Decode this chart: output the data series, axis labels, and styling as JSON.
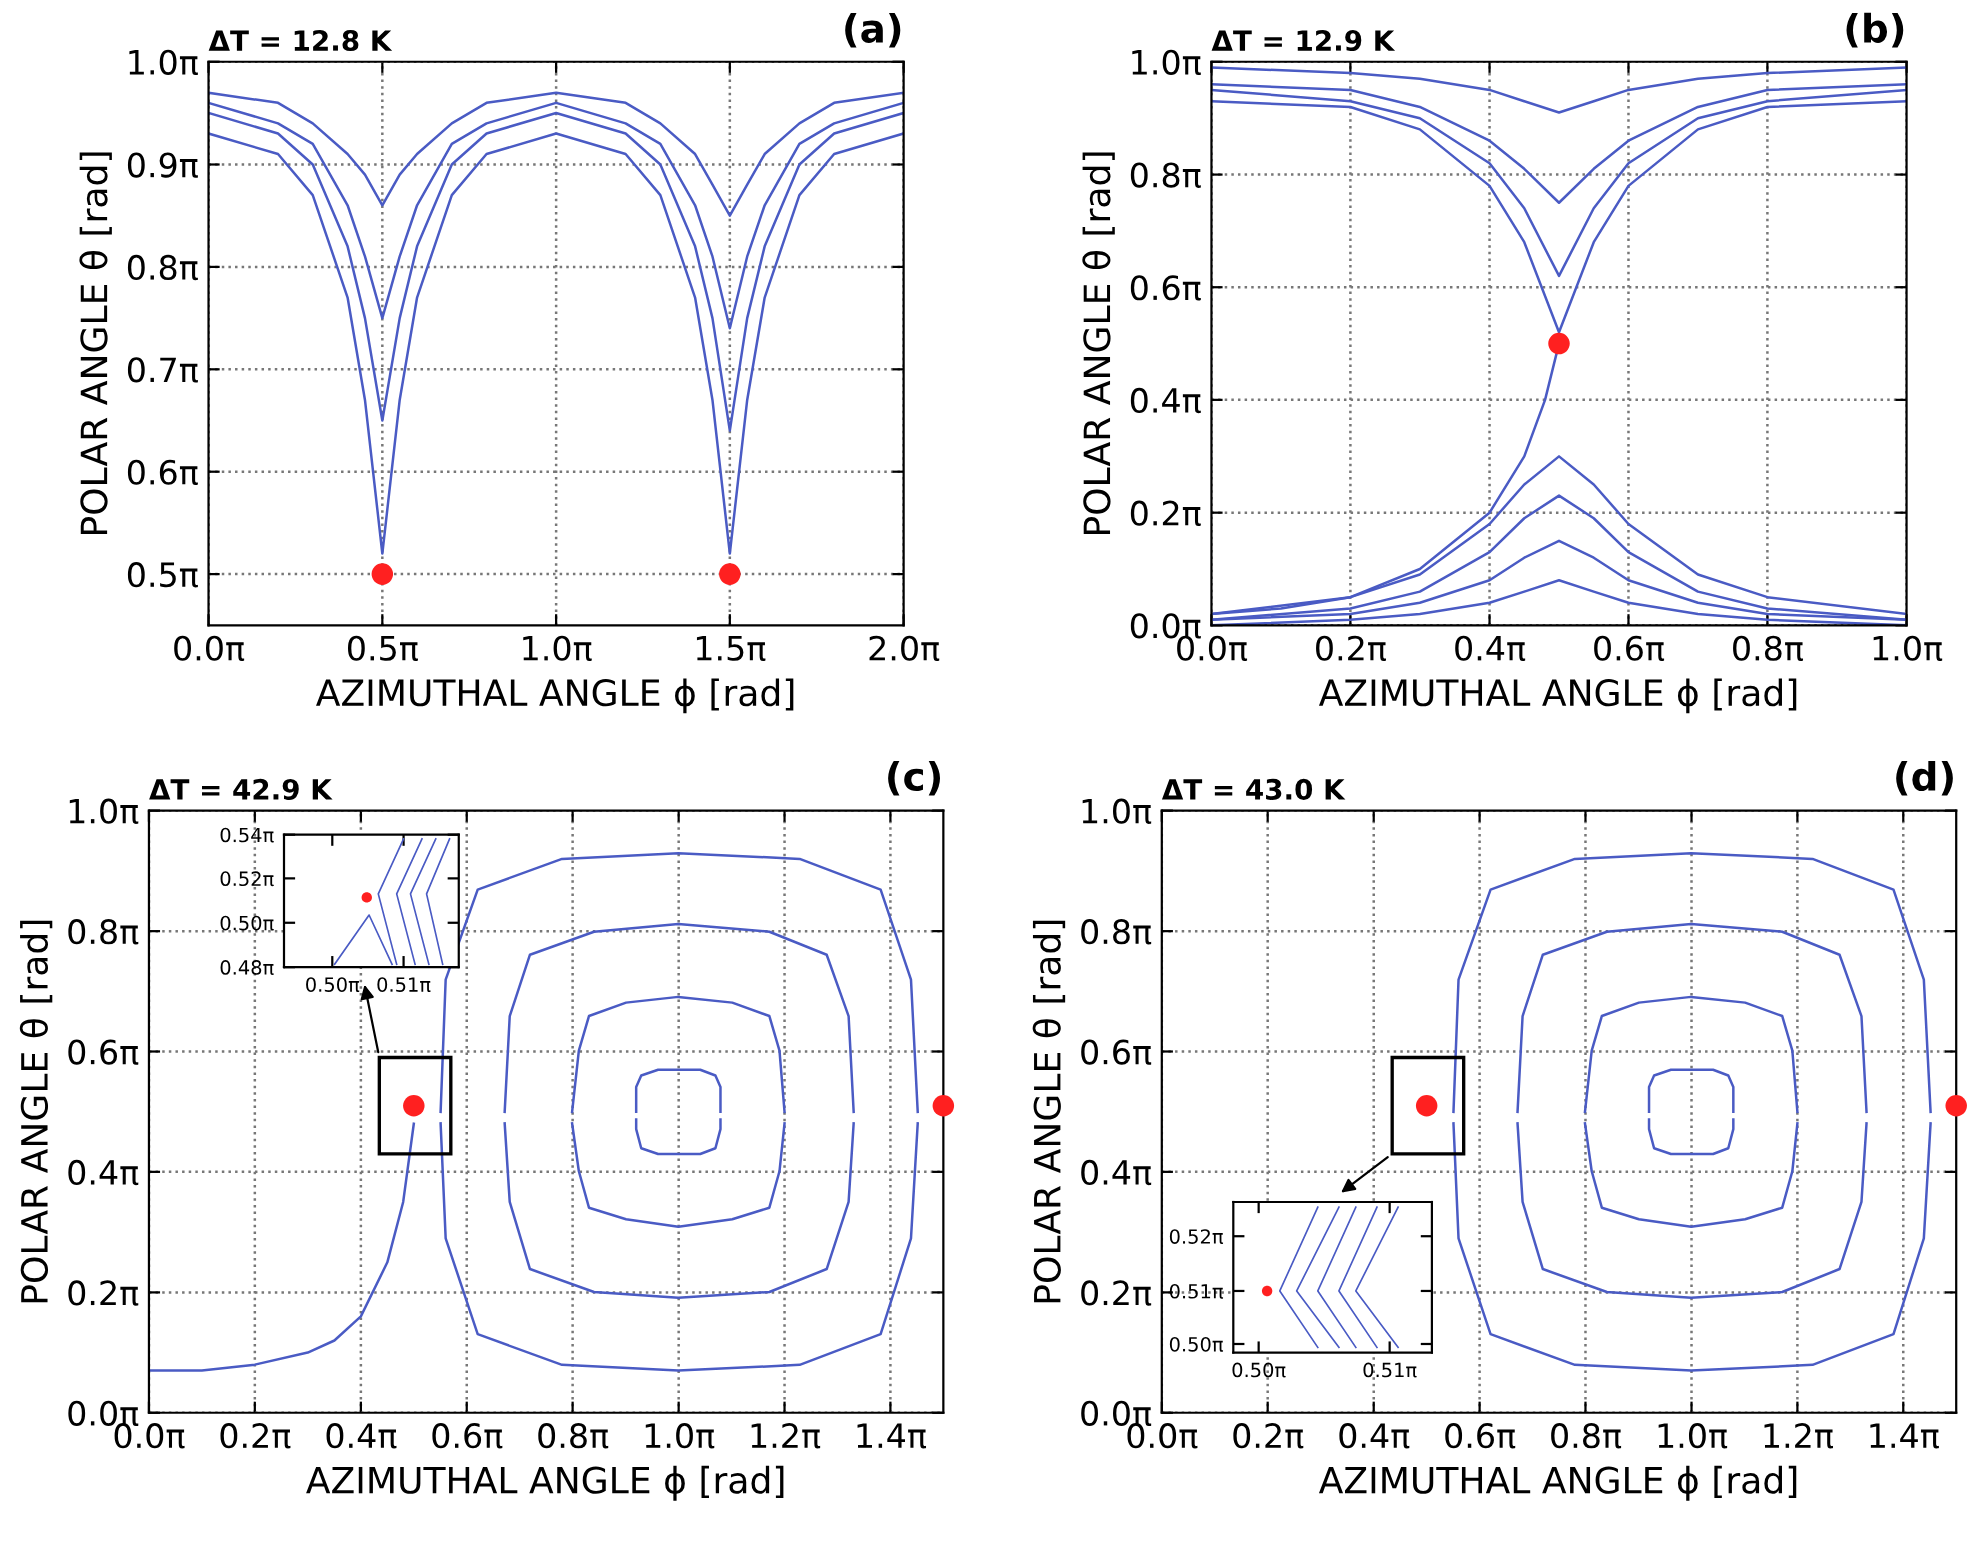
{
  "chart_data": [
    {
      "type": "line",
      "title": "ΔT = 12.8 K",
      "annotations": [
        "(a)"
      ],
      "xlabel": "AZIMUTHAL ANGLE ϕ [rad]",
      "ylabel": "POLAR ANGLE θ [rad]",
      "grid": true,
      "xlim": [
        0,
        6.283
      ],
      "ylim": [
        1.414,
        3.142
      ],
      "xticks": [
        {
          "value": 0,
          "label": "0.0π"
        },
        {
          "value": 1.571,
          "label": "0.5π"
        },
        {
          "value": 3.142,
          "label": "1.0π"
        },
        {
          "value": 4.712,
          "label": "1.5π"
        },
        {
          "value": 6.283,
          "label": "2.0π"
        }
      ],
      "yticks": [
        {
          "value": 1.571,
          "label": "0.5π"
        },
        {
          "value": 1.885,
          "label": "0.6π"
        },
        {
          "value": 2.199,
          "label": "0.7π"
        },
        {
          "value": 2.513,
          "label": "0.8π"
        },
        {
          "value": 2.827,
          "label": "0.9π"
        },
        {
          "value": 3.142,
          "label": "1.0π"
        }
      ],
      "x": [
        0,
        0.628,
        0.942,
        1.257,
        1.414,
        1.571,
        1.728,
        1.885,
        2.199,
        2.513,
        3.142,
        3.77,
        4.084,
        4.398,
        4.555,
        4.712,
        4.869,
        5.027,
        5.341,
        5.655,
        6.283
      ],
      "series": [
        {
          "color": "#4a5bc4",
          "values": [
            2.922,
            2.859,
            2.733,
            2.419,
            2.105,
            1.634,
            2.105,
            2.419,
            2.733,
            2.859,
            2.922,
            2.859,
            2.733,
            2.419,
            2.105,
            1.634,
            2.105,
            2.419,
            2.733,
            2.859,
            2.922
          ]
        },
        {
          "color": "#4a5bc4",
          "values": [
            2.985,
            2.922,
            2.827,
            2.576,
            2.356,
            2.042,
            2.356,
            2.576,
            2.827,
            2.922,
            2.985,
            2.922,
            2.827,
            2.576,
            2.356,
            2.011,
            2.356,
            2.576,
            2.827,
            2.922,
            2.985
          ]
        },
        {
          "color": "#4a5bc4",
          "values": [
            3.016,
            2.953,
            2.89,
            2.702,
            2.545,
            2.356,
            2.545,
            2.702,
            2.89,
            2.953,
            3.016,
            2.953,
            2.89,
            2.702,
            2.545,
            2.325,
            2.545,
            2.702,
            2.89,
            2.953,
            3.016
          ]
        },
        {
          "color": "#4a5bc4",
          "values": [
            3.047,
            3.016,
            2.953,
            2.859,
            2.796,
            2.702,
            2.796,
            2.859,
            2.953,
            3.016,
            3.047,
            3.016,
            2.953,
            2.859,
            2.765,
            2.67,
            2.765,
            2.859,
            2.953,
            3.016,
            3.047
          ]
        },
        {
          "type": "scatter",
          "marker": "circle",
          "color": "#ff2020",
          "x": [
            1.571,
            4.712
          ],
          "values": [
            1.571,
            1.571
          ]
        }
      ]
    },
    {
      "type": "line",
      "title": "ΔT = 12.9 K",
      "annotations": [
        "(b)"
      ],
      "xlabel": "AZIMUTHAL ANGLE ϕ [rad]",
      "ylabel": "POLAR ANGLE θ [rad]",
      "grid": true,
      "xlim": [
        0,
        3.142
      ],
      "ylim": [
        0,
        3.142
      ],
      "xticks": [
        {
          "value": 0,
          "label": "0.0π"
        },
        {
          "value": 0.628,
          "label": "0.2π"
        },
        {
          "value": 1.257,
          "label": "0.4π"
        },
        {
          "value": 1.885,
          "label": "0.6π"
        },
        {
          "value": 2.513,
          "label": "0.8π"
        },
        {
          "value": 3.142,
          "label": "1.0π"
        }
      ],
      "yticks": [
        {
          "value": 0,
          "label": "0.0π"
        },
        {
          "value": 0.628,
          "label": "0.2π"
        },
        {
          "value": 1.257,
          "label": "0.4π"
        },
        {
          "value": 1.885,
          "label": "0.6π"
        },
        {
          "value": 2.513,
          "label": "0.8π"
        },
        {
          "value": 3.142,
          "label": "1.0π"
        }
      ],
      "x": [
        0,
        0.628,
        0.942,
        1.257,
        1.414,
        1.571,
        1.728,
        1.885,
        2.199,
        2.513,
        3.142
      ],
      "series": [
        {
          "color": "#4a5bc4",
          "values": [
            2.922,
            2.89,
            2.765,
            2.45,
            2.136,
            1.634,
            2.136,
            2.45,
            2.765,
            2.89,
            2.922
          ]
        },
        {
          "color": "#4a5bc4",
          "values": [
            2.985,
            2.922,
            2.827,
            2.576,
            2.325,
            1.948,
            2.325,
            2.576,
            2.827,
            2.922,
            2.985
          ]
        },
        {
          "color": "#4a5bc4",
          "values": [
            3.016,
            2.985,
            2.89,
            2.702,
            2.545,
            2.356,
            2.545,
            2.702,
            2.89,
            2.985,
            3.016
          ]
        },
        {
          "color": "#4a5bc4",
          "values": [
            3.11,
            3.079,
            3.047,
            2.985,
            2.922,
            2.859,
            2.922,
            2.985,
            3.047,
            3.079,
            3.11
          ]
        },
        {
          "color": "#4a5bc4",
          "values": [
            0.063,
            0.157,
            0.283,
            0.565,
            0.785,
            0.942,
            0.785,
            0.565,
            0.283,
            0.157,
            0.063
          ]
        },
        {
          "color": "#4a5bc4",
          "values": [
            0.031,
            0.094,
            0.188,
            0.408,
            0.597,
            0.723,
            0.597,
            0.408,
            0.188,
            0.094,
            0.031
          ]
        },
        {
          "color": "#4a5bc4",
          "values": [
            0.031,
            0.063,
            0.126,
            0.251,
            0.377,
            0.471,
            0.377,
            0.251,
            0.126,
            0.063,
            0.031
          ]
        },
        {
          "color": "#4a5bc4",
          "values": [
            0,
            0.031,
            0.063,
            0.126,
            0.188,
            0.251,
            0.188,
            0.126,
            0.063,
            0.031,
            0
          ]
        },
        {
          "color": "#4a5bc4",
          "x": [
            0,
            0.314,
            0.628,
            0.942,
            1.257,
            1.414,
            1.508,
            1.571
          ],
          "values": [
            0.063,
            0.094,
            0.157,
            0.314,
            0.628,
            0.942,
            1.257,
            1.571
          ]
        },
        {
          "type": "scatter",
          "marker": "circle",
          "color": "#ff2020",
          "x": [
            1.571
          ],
          "values": [
            1.571
          ]
        }
      ]
    },
    {
      "type": "line",
      "title": "ΔT = 42.9 K",
      "annotations": [
        "(c)"
      ],
      "xlabel": "AZIMUTHAL ANGLE ϕ [rad]",
      "ylabel": "POLAR ANGLE θ [rad]",
      "grid": true,
      "xlim": [
        0,
        4.712
      ],
      "ylim": [
        0,
        3.142
      ],
      "xticks": [
        {
          "value": 0,
          "label": "0.0π"
        },
        {
          "value": 0.628,
          "label": "0.2π"
        },
        {
          "value": 1.257,
          "label": "0.4π"
        },
        {
          "value": 1.885,
          "label": "0.6π"
        },
        {
          "value": 2.513,
          "label": "0.8π"
        },
        {
          "value": 3.142,
          "label": "1.0π"
        },
        {
          "value": 3.77,
          "label": "1.2π"
        },
        {
          "value": 4.398,
          "label": "1.4π"
        }
      ],
      "yticks": [
        {
          "value": 0,
          "label": "0.0π"
        },
        {
          "value": 0.628,
          "label": "0.2π"
        },
        {
          "value": 1.257,
          "label": "0.4π"
        },
        {
          "value": 1.885,
          "label": "0.6π"
        },
        {
          "value": 2.513,
          "label": "0.8π"
        },
        {
          "value": 3.142,
          "label": "1.0π"
        }
      ],
      "series": [
        {
          "color": "#4a5bc4",
          "x": [
            1.73,
            1.76,
            1.95,
            2.45,
            3.14,
            3.86,
            4.34,
            4.52,
            4.56
          ],
          "values": [
            1.57,
            2.26,
            2.73,
            2.89,
            2.92,
            2.89,
            2.73,
            2.26,
            1.57
          ]
        },
        {
          "color": "#4a5bc4",
          "x": [
            1.73,
            1.76,
            1.95,
            2.45,
            3.14,
            3.86,
            4.34,
            4.52,
            4.56
          ],
          "values": [
            1.51,
            0.91,
            0.41,
            0.25,
            0.22,
            0.25,
            0.41,
            0.91,
            1.51
          ]
        },
        {
          "color": "#4a5bc4",
          "x": [
            2.11,
            2.14,
            2.26,
            2.64,
            3.14,
            3.68,
            4.02,
            4.15,
            4.18
          ],
          "values": [
            1.57,
            2.07,
            2.39,
            2.51,
            2.55,
            2.51,
            2.39,
            2.07,
            1.57
          ]
        },
        {
          "color": "#4a5bc4",
          "x": [
            2.11,
            2.14,
            2.26,
            2.64,
            3.14,
            3.68,
            4.02,
            4.15,
            4.18
          ],
          "values": [
            1.51,
            1.1,
            0.75,
            0.63,
            0.6,
            0.63,
            0.75,
            1.1,
            1.51
          ]
        },
        {
          "color": "#4a5bc4",
          "x": [
            2.51,
            2.55,
            2.61,
            2.83,
            3.14,
            3.46,
            3.68,
            3.74,
            3.77
          ],
          "values": [
            1.57,
            1.89,
            2.07,
            2.14,
            2.17,
            2.14,
            2.07,
            1.89,
            1.57
          ]
        },
        {
          "color": "#4a5bc4",
          "x": [
            2.51,
            2.55,
            2.61,
            2.83,
            3.14,
            3.46,
            3.68,
            3.74,
            3.77
          ],
          "values": [
            1.51,
            1.26,
            1.07,
            1.01,
            0.97,
            1.01,
            1.07,
            1.26,
            1.51
          ]
        },
        {
          "color": "#4a5bc4",
          "x": [
            2.89,
            2.89,
            2.92,
            3.02,
            3.14,
            3.27,
            3.36,
            3.39,
            3.39
          ],
          "values": [
            1.57,
            1.7,
            1.76,
            1.79,
            1.79,
            1.79,
            1.76,
            1.7,
            1.57
          ]
        },
        {
          "color": "#4a5bc4",
          "x": [
            2.89,
            2.89,
            2.92,
            3.02,
            3.14,
            3.27,
            3.36,
            3.39,
            3.39
          ],
          "values": [
            1.53,
            1.48,
            1.38,
            1.35,
            1.35,
            1.35,
            1.38,
            1.48,
            1.53
          ]
        },
        {
          "color": "#4a5bc4",
          "x": [
            0,
            0.314,
            0.628,
            0.942,
            1.1,
            1.257,
            1.414,
            1.508,
            1.571
          ],
          "values": [
            0.22,
            0.22,
            0.251,
            0.314,
            0.377,
            0.503,
            0.785,
            1.1,
            1.508
          ]
        },
        {
          "type": "scatter",
          "marker": "circle",
          "color": "#ff2020",
          "x": [
            1.571,
            4.712
          ],
          "values": [
            1.602,
            1.602
          ]
        }
      ]
    },
    {
      "type": "line",
      "xlim": [
        1.55,
        1.626
      ],
      "ylim": [
        1.508,
        1.696
      ],
      "xticks": [
        {
          "value": 1.571,
          "label": "0.50π"
        },
        {
          "value": 1.602,
          "label": "0.51π"
        }
      ],
      "yticks": [
        {
          "value": 1.508,
          "label": "0.48π"
        },
        {
          "value": 1.571,
          "label": "0.50π"
        },
        {
          "value": 1.634,
          "label": "0.52π"
        },
        {
          "value": 1.696,
          "label": "0.54π"
        }
      ],
      "series": [
        {
          "color": "#4a5bc4",
          "x": [
            1.572,
            1.587,
            1.597
          ],
          "values": [
            1.512,
            1.582,
            1.512
          ]
        },
        {
          "color": "#4a5bc4",
          "x": [
            1.602,
            1.591,
            1.599
          ],
          "values": [
            1.69,
            1.612,
            1.512
          ]
        },
        {
          "color": "#4a5bc4",
          "x": [
            1.61,
            1.599,
            1.607
          ],
          "values": [
            1.69,
            1.612,
            1.512
          ]
        },
        {
          "color": "#4a5bc4",
          "x": [
            1.616,
            1.605,
            1.613
          ],
          "values": [
            1.69,
            1.612,
            1.512
          ]
        },
        {
          "color": "#4a5bc4",
          "x": [
            1.622,
            1.612,
            1.619
          ],
          "values": [
            1.69,
            1.612,
            1.512
          ]
        },
        {
          "type": "scatter",
          "marker": "circle",
          "color": "#ff2020",
          "x": [
            1.586
          ],
          "values": [
            1.607
          ]
        }
      ]
    },
    {
      "type": "line",
      "title": "ΔT = 43.0 K",
      "annotations": [
        "(d)"
      ],
      "xlabel": "AZIMUTHAL ANGLE ϕ [rad]",
      "ylabel": "POLAR ANGLE θ [rad]",
      "grid": true,
      "xlim": [
        0,
        4.712
      ],
      "ylim": [
        0,
        3.142
      ],
      "xticks": [
        {
          "value": 0,
          "label": "0.0π"
        },
        {
          "value": 0.628,
          "label": "0.2π"
        },
        {
          "value": 1.257,
          "label": "0.4π"
        },
        {
          "value": 1.885,
          "label": "0.6π"
        },
        {
          "value": 2.513,
          "label": "0.8π"
        },
        {
          "value": 3.142,
          "label": "1.0π"
        },
        {
          "value": 3.77,
          "label": "1.2π"
        },
        {
          "value": 4.398,
          "label": "1.4π"
        }
      ],
      "yticks": [
        {
          "value": 0,
          "label": "0.0π"
        },
        {
          "value": 0.628,
          "label": "0.2π"
        },
        {
          "value": 1.257,
          "label": "0.4π"
        },
        {
          "value": 1.885,
          "label": "0.6π"
        },
        {
          "value": 2.513,
          "label": "0.8π"
        },
        {
          "value": 3.142,
          "label": "1.0π"
        }
      ],
      "series": [
        {
          "color": "#4a5bc4",
          "x": [
            1.73,
            1.76,
            1.95,
            2.45,
            3.14,
            3.86,
            4.34,
            4.52,
            4.56
          ],
          "values": [
            1.57,
            2.26,
            2.73,
            2.89,
            2.92,
            2.89,
            2.73,
            2.26,
            1.57
          ]
        },
        {
          "color": "#4a5bc4",
          "x": [
            1.73,
            1.76,
            1.95,
            2.45,
            3.14,
            3.86,
            4.34,
            4.52,
            4.56
          ],
          "values": [
            1.51,
            0.91,
            0.41,
            0.25,
            0.22,
            0.25,
            0.41,
            0.91,
            1.51
          ]
        },
        {
          "color": "#4a5bc4",
          "x": [
            2.11,
            2.14,
            2.26,
            2.64,
            3.14,
            3.68,
            4.02,
            4.15,
            4.18
          ],
          "values": [
            1.57,
            2.07,
            2.39,
            2.51,
            2.55,
            2.51,
            2.39,
            2.07,
            1.57
          ]
        },
        {
          "color": "#4a5bc4",
          "x": [
            2.11,
            2.14,
            2.26,
            2.64,
            3.14,
            3.68,
            4.02,
            4.15,
            4.18
          ],
          "values": [
            1.51,
            1.1,
            0.75,
            0.63,
            0.6,
            0.63,
            0.75,
            1.1,
            1.51
          ]
        },
        {
          "color": "#4a5bc4",
          "x": [
            2.51,
            2.55,
            2.61,
            2.83,
            3.14,
            3.46,
            3.68,
            3.74,
            3.77
          ],
          "values": [
            1.57,
            1.89,
            2.07,
            2.14,
            2.17,
            2.14,
            2.07,
            1.89,
            1.57
          ]
        },
        {
          "color": "#4a5bc4",
          "x": [
            2.51,
            2.55,
            2.61,
            2.83,
            3.14,
            3.46,
            3.68,
            3.74,
            3.77
          ],
          "values": [
            1.51,
            1.26,
            1.07,
            1.01,
            0.97,
            1.01,
            1.07,
            1.26,
            1.51
          ]
        },
        {
          "color": "#4a5bc4",
          "x": [
            2.89,
            2.89,
            2.92,
            3.02,
            3.14,
            3.27,
            3.36,
            3.39,
            3.39
          ],
          "values": [
            1.57,
            1.7,
            1.76,
            1.79,
            1.79,
            1.79,
            1.76,
            1.7,
            1.57
          ]
        },
        {
          "color": "#4a5bc4",
          "x": [
            2.89,
            2.89,
            2.92,
            3.02,
            3.14,
            3.27,
            3.36,
            3.39,
            3.39
          ],
          "values": [
            1.53,
            1.48,
            1.38,
            1.35,
            1.35,
            1.35,
            1.38,
            1.48,
            1.53
          ]
        },
        {
          "type": "scatter",
          "marker": "circle",
          "color": "#ff2020",
          "x": [
            1.571,
            4.712
          ],
          "values": [
            1.602,
            1.602
          ]
        }
      ]
    },
    {
      "type": "line",
      "xlim": [
        1.565,
        1.612
      ],
      "ylim": [
        1.566,
        1.654
      ],
      "xticks": [
        {
          "value": 1.571,
          "label": "0.50π"
        },
        {
          "value": 1.602,
          "label": "0.51π"
        }
      ],
      "yticks": [
        {
          "value": 1.571,
          "label": "0.50π"
        },
        {
          "value": 1.602,
          "label": "0.51π"
        },
        {
          "value": 1.634,
          "label": "0.52π"
        }
      ],
      "series": [
        {
          "color": "#4a5bc4",
          "x": [
            1.585,
            1.576,
            1.585
          ],
          "values": [
            1.651,
            1.602,
            1.569
          ]
        },
        {
          "color": "#4a5bc4",
          "x": [
            1.59,
            1.58,
            1.59
          ],
          "values": [
            1.651,
            1.602,
            1.569
          ]
        },
        {
          "color": "#4a5bc4",
          "x": [
            1.594,
            1.585,
            1.594
          ],
          "values": [
            1.651,
            1.602,
            1.569
          ]
        },
        {
          "color": "#4a5bc4",
          "x": [
            1.599,
            1.59,
            1.599
          ],
          "values": [
            1.651,
            1.602,
            1.569
          ]
        },
        {
          "color": "#4a5bc4",
          "x": [
            1.604,
            1.594,
            1.604
          ],
          "values": [
            1.651,
            1.602,
            1.569
          ]
        },
        {
          "type": "scatter",
          "marker": "circle",
          "color": "#ff2020",
          "x": [
            1.573
          ],
          "values": [
            1.602
          ]
        }
      ]
    }
  ]
}
